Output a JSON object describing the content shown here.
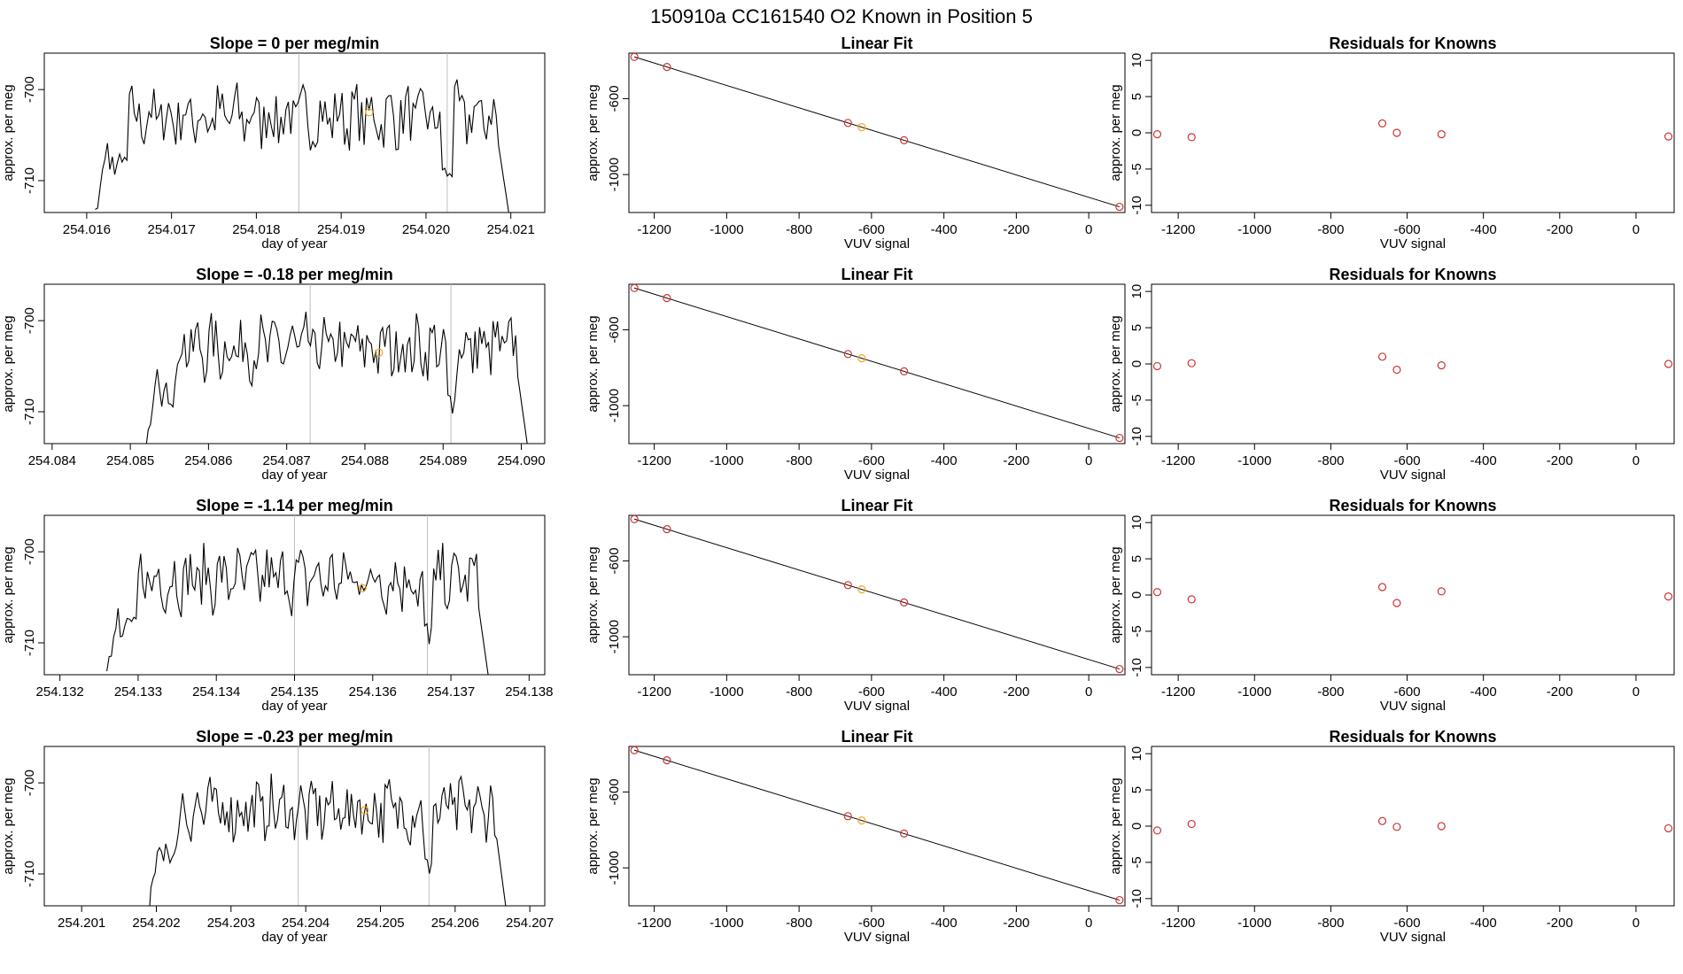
{
  "title": "150910a      CC161540    O2 Known in Position  5",
  "colors": {
    "line": "#000000",
    "point_known": "#cd3333",
    "point_highlight": "#f5a623",
    "vline": "#bebebe",
    "text": "#000000"
  },
  "labels": {
    "ts_ylabel": "approx. per meg",
    "ts_xlabel": "day of year",
    "fit_title": "Linear Fit",
    "fit_ylabel": "approx. per meg",
    "fit_xlabel": "VUV signal",
    "res_title": "Residuals for Knowns",
    "res_ylabel": "approx. per meg",
    "res_xlabel": "VUV signal"
  },
  "fit_axes": {
    "x_ticks": [
      -1200,
      -1000,
      -800,
      -600,
      -400,
      -200,
      0
    ],
    "y_ticks": [
      -600,
      -1000
    ],
    "xlim": [
      -1270,
      100
    ],
    "ylim": [
      -1200,
      -360
    ]
  },
  "res_axes": {
    "x_ticks": [
      -1200,
      -1000,
      -800,
      -600,
      -400,
      -200,
      0
    ],
    "y_ticks": [
      10,
      5,
      0,
      -5,
      -10
    ],
    "xlim": [
      -1270,
      100
    ],
    "ylim": [
      -11,
      11
    ]
  },
  "fit_points_x": [
    -1255,
    -1165,
    -665,
    -627,
    -510,
    85
  ],
  "rows": [
    {
      "slope_title": "Slope =  0  per meg/min",
      "ts_x_ticks": [
        "254.016",
        "254.017",
        "254.018",
        "254.019",
        "254.020",
        "254.021"
      ],
      "ts_xlim": [
        254.0155,
        254.0214
      ],
      "ts_ylim": [
        -713.5,
        -696
      ],
      "ts_y_ticks": [
        "-700",
        "-710"
      ],
      "ts_start": 254.0161,
      "ts_end": 254.021,
      "ts_vlines": [
        254.0185,
        254.02025
      ],
      "ts_orange": [
        254.01933,
        -702.5
      ],
      "residuals": [
        -0.2,
        -0.6,
        1.3,
        0.0,
        -0.2,
        -0.5
      ]
    },
    {
      "slope_title": "Slope =  -0.18  per meg/min",
      "ts_x_ticks": [
        "254.084",
        "254.085",
        "254.086",
        "254.087",
        "254.088",
        "254.089",
        "254.090"
      ],
      "ts_xlim": [
        254.0839,
        254.0903
      ],
      "ts_ylim": [
        -713.5,
        -696
      ],
      "ts_y_ticks": [
        "-700",
        "-710"
      ],
      "ts_start": 254.0852,
      "ts_end": 254.0901,
      "ts_vlines": [
        254.0873,
        254.0891
      ],
      "ts_orange": [
        254.08818,
        -703.5
      ],
      "residuals": [
        -0.3,
        0.1,
        1.0,
        -0.8,
        -0.2,
        0.0
      ]
    },
    {
      "slope_title": "Slope =  -1.14  per meg/min",
      "ts_x_ticks": [
        "254.132",
        "254.133",
        "254.134",
        "254.135",
        "254.136",
        "254.137",
        "254.138"
      ],
      "ts_xlim": [
        254.1318,
        254.1382
      ],
      "ts_ylim": [
        -713.5,
        -696
      ],
      "ts_y_ticks": [
        "-700",
        "-710"
      ],
      "ts_start": 254.1326,
      "ts_end": 254.1375,
      "ts_vlines": [
        254.135,
        254.1367
      ],
      "ts_orange": [
        254.13587,
        -704
      ],
      "residuals": [
        0.4,
        -0.6,
        1.1,
        -1.1,
        0.5,
        -0.2
      ]
    },
    {
      "slope_title": "Slope =  -0.23  per meg/min",
      "ts_x_ticks": [
        "254.201",
        "254.202",
        "254.203",
        "254.204",
        "254.205",
        "254.206",
        "254.207"
      ],
      "ts_xlim": [
        254.2005,
        254.2072
      ],
      "ts_ylim": [
        -713.5,
        -696
      ],
      "ts_y_ticks": [
        "-700",
        "-710"
      ],
      "ts_start": 254.2019,
      "ts_end": 254.2067,
      "ts_vlines": [
        254.2039,
        254.20565
      ],
      "ts_orange": [
        254.20479,
        -703
      ],
      "residuals": [
        -0.6,
        0.3,
        0.7,
        -0.1,
        0.0,
        -0.3
      ]
    }
  ],
  "chart_data": [
    {
      "type": "line",
      "title": "Slope =  0  per meg/min",
      "xlabel": "day of year",
      "ylabel": "approx. per meg",
      "xlim": [
        254.0155,
        254.0214
      ],
      "ylim": [
        -713.5,
        -696
      ]
    },
    {
      "type": "scatter",
      "title": "Linear Fit",
      "xlabel": "VUV signal",
      "ylabel": "approx. per meg",
      "x": [
        -1255,
        -1165,
        -665,
        -627,
        -510,
        85
      ]
    },
    {
      "type": "scatter",
      "title": "Residuals for Knowns",
      "xlabel": "VUV signal",
      "ylabel": "approx. per meg",
      "x": [
        -1255,
        -1165,
        -665,
        -627,
        -510,
        85
      ],
      "y": [
        -0.2,
        -0.6,
        1.3,
        0.0,
        -0.2,
        -0.5
      ]
    },
    {
      "type": "line",
      "title": "Slope =  -0.18  per meg/min",
      "xlabel": "day of year",
      "ylabel": "approx. per meg",
      "xlim": [
        254.0839,
        254.0903
      ],
      "ylim": [
        -713.5,
        -696
      ]
    },
    {
      "type": "scatter",
      "title": "Linear Fit",
      "xlabel": "VUV signal",
      "ylabel": "approx. per meg",
      "x": [
        -1255,
        -1165,
        -665,
        -627,
        -510,
        85
      ]
    },
    {
      "type": "scatter",
      "title": "Residuals for Knowns",
      "xlabel": "VUV signal",
      "ylabel": "approx. per meg",
      "x": [
        -1255,
        -1165,
        -665,
        -627,
        -510,
        85
      ],
      "y": [
        -0.3,
        0.1,
        1.0,
        -0.8,
        -0.2,
        0.0
      ]
    },
    {
      "type": "line",
      "title": "Slope =  -1.14  per meg/min",
      "xlabel": "day of year",
      "ylabel": "approx. per meg",
      "xlim": [
        254.1318,
        254.1382
      ],
      "ylim": [
        -713.5,
        -696
      ]
    },
    {
      "type": "scatter",
      "title": "Linear Fit",
      "xlabel": "VUV signal",
      "ylabel": "approx. per meg",
      "x": [
        -1255,
        -1165,
        -665,
        -627,
        -510,
        85
      ]
    },
    {
      "type": "scatter",
      "title": "Residuals for Knowns",
      "xlabel": "VUV signal",
      "ylabel": "approx. per meg",
      "x": [
        -1255,
        -1165,
        -665,
        -627,
        -510,
        85
      ],
      "y": [
        0.4,
        -0.6,
        1.1,
        -1.1,
        0.5,
        -0.2
      ]
    },
    {
      "type": "line",
      "title": "Slope =  -0.23  per meg/min",
      "xlabel": "day of year",
      "ylabel": "approx. per meg",
      "xlim": [
        254.2005,
        254.2072
      ],
      "ylim": [
        -713.5,
        -696
      ]
    },
    {
      "type": "scatter",
      "title": "Linear Fit",
      "xlabel": "VUV signal",
      "ylabel": "approx. per meg",
      "x": [
        -1255,
        -1165,
        -665,
        -627,
        -510,
        85
      ]
    },
    {
      "type": "scatter",
      "title": "Residuals for Knowns",
      "xlabel": "VUV signal",
      "ylabel": "approx. per meg",
      "x": [
        -1255,
        -1165,
        -665,
        -627,
        -510,
        85
      ],
      "y": [
        -0.6,
        0.3,
        0.7,
        -0.1,
        0.0,
        -0.3
      ]
    }
  ]
}
